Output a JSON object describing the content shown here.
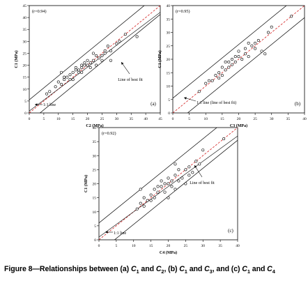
{
  "caption": {
    "prefix": "Figure 8—Relationships between (a) ",
    "v1": "C",
    "s1": "1",
    "and1": " and ",
    "v2": "C",
    "s2": "2",
    "sep1": ", (b) ",
    "v3": "C",
    "s3": "1",
    "and2": " and ",
    "v4": "C",
    "s4": "3",
    "sep2": ", and (c) ",
    "v5": "C",
    "s5": "1",
    "and3": " and ",
    "v6": "C",
    "s6": "4"
  },
  "chart_data": [
    {
      "type": "scatter",
      "panel_label": "(a)",
      "r_label": "(r=0.94)",
      "xlabel": "C2 (MPa)",
      "ylabel": "C1 (MPa)",
      "xlim": [
        0,
        45
      ],
      "ylim": [
        0,
        45
      ],
      "xticks": [
        0,
        5,
        10,
        15,
        20,
        25,
        30,
        35,
        40,
        45
      ],
      "yticks": [
        0,
        5,
        10,
        15,
        20,
        25,
        30,
        35,
        40,
        45
      ],
      "annotations": {
        "one_to_one": "1:1 line",
        "best_fit": "Line of best fit"
      },
      "one_to_one": {
        "slope": 1,
        "intercept": 0
      },
      "best_fit": {
        "slope": 0.92,
        "intercept": 0.8
      },
      "band": {
        "upper_intercept": 5.5,
        "lower_intercept": -3.7
      },
      "points": [
        [
          6,
          8
        ],
        [
          7,
          9
        ],
        [
          9,
          11
        ],
        [
          10,
          13
        ],
        [
          11,
          12
        ],
        [
          11,
          17
        ],
        [
          12,
          14
        ],
        [
          12,
          15
        ],
        [
          13,
          15
        ],
        [
          14,
          14
        ],
        [
          14,
          16
        ],
        [
          15,
          14
        ],
        [
          15,
          17
        ],
        [
          16,
          18
        ],
        [
          16,
          19
        ],
        [
          17,
          17
        ],
        [
          17,
          18
        ],
        [
          18,
          17
        ],
        [
          18,
          19
        ],
        [
          18,
          20
        ],
        [
          19,
          20
        ],
        [
          19,
          21
        ],
        [
          20,
          20
        ],
        [
          20,
          22
        ],
        [
          21,
          19
        ],
        [
          21,
          21
        ],
        [
          22,
          22
        ],
        [
          22,
          25
        ],
        [
          23,
          20
        ],
        [
          23,
          24
        ],
        [
          24,
          23
        ],
        [
          25,
          22
        ],
        [
          25,
          24
        ],
        [
          26,
          26
        ],
        [
          26,
          25
        ],
        [
          27,
          28
        ],
        [
          28,
          26
        ],
        [
          28,
          22
        ],
        [
          30,
          29
        ],
        [
          31,
          30
        ],
        [
          33,
          33
        ],
        [
          37,
          32
        ]
      ]
    },
    {
      "type": "scatter",
      "panel_label": "(b)",
      "r_label": "(r=0.95)",
      "xlabel": "C3 (MPa)",
      "ylabel": "C1 (MPa)",
      "xlim": [
        0,
        40
      ],
      "ylim": [
        0,
        40
      ],
      "xticks": [
        0,
        5,
        10,
        15,
        20,
        25,
        30,
        35,
        40
      ],
      "yticks": [
        0,
        5,
        10,
        15,
        20,
        25,
        30,
        35,
        40
      ],
      "annotations": {
        "one_to_one": "1:1 line (line of best fit)",
        "best_fit": ""
      },
      "one_to_one": {
        "slope": 1,
        "intercept": 0
      },
      "best_fit": null,
      "band": {
        "upper_intercept": 5.5,
        "lower_intercept": -4.5
      },
      "points": [
        [
          8,
          8
        ],
        [
          10,
          11
        ],
        [
          11,
          12
        ],
        [
          12,
          12
        ],
        [
          13,
          14
        ],
        [
          14,
          13
        ],
        [
          14,
          15
        ],
        [
          15,
          14
        ],
        [
          15,
          17
        ],
        [
          16,
          16
        ],
        [
          16,
          19
        ],
        [
          17,
          17
        ],
        [
          17,
          19
        ],
        [
          18,
          18
        ],
        [
          18,
          20
        ],
        [
          19,
          19
        ],
        [
          19,
          21
        ],
        [
          20,
          21
        ],
        [
          20,
          23
        ],
        [
          21,
          20
        ],
        [
          22,
          22
        ],
        [
          22,
          24
        ],
        [
          23,
          26
        ],
        [
          23,
          21
        ],
        [
          24,
          25
        ],
        [
          25,
          24
        ],
        [
          25,
          26
        ],
        [
          26,
          27
        ],
        [
          27,
          23
        ],
        [
          28,
          22
        ],
        [
          29,
          30
        ],
        [
          30,
          32
        ],
        [
          36,
          36
        ]
      ]
    },
    {
      "type": "scatter",
      "panel_label": "(c)",
      "r_label": "(r=0.92)",
      "xlabel": "C4 (MPa)",
      "ylabel": "C1 (MPa)",
      "xlim": [
        0,
        40
      ],
      "ylim": [
        0,
        40
      ],
      "xticks": [
        0,
        5,
        10,
        15,
        20,
        25,
        30,
        35,
        40
      ],
      "yticks": [
        0,
        5,
        10,
        15,
        20,
        25,
        30,
        35,
        40
      ],
      "annotations": {
        "one_to_one": "1:1 line",
        "best_fit": "Line of best fit"
      },
      "one_to_one": {
        "slope": 1,
        "intercept": 0
      },
      "best_fit": {
        "slope": 0.9,
        "intercept": 1.0
      },
      "band": {
        "upper_intercept": 6.0,
        "lower_intercept": -4.5
      },
      "points": [
        [
          11,
          11
        ],
        [
          12,
          13
        ],
        [
          12,
          18
        ],
        [
          13,
          12
        ],
        [
          13,
          15
        ],
        [
          14,
          14
        ],
        [
          15,
          14
        ],
        [
          15,
          16
        ],
        [
          16,
          15
        ],
        [
          16,
          18
        ],
        [
          17,
          17
        ],
        [
          17,
          19
        ],
        [
          18,
          19
        ],
        [
          18,
          21
        ],
        [
          19,
          20
        ],
        [
          19,
          17
        ],
        [
          20,
          20
        ],
        [
          20,
          22
        ],
        [
          20,
          15
        ],
        [
          21,
          19
        ],
        [
          21,
          21
        ],
        [
          22,
          23
        ],
        [
          22,
          18
        ],
        [
          22,
          27
        ],
        [
          23,
          21
        ],
        [
          23,
          25
        ],
        [
          24,
          22
        ],
        [
          25,
          25
        ],
        [
          25,
          20
        ],
        [
          26,
          26
        ],
        [
          26,
          23
        ],
        [
          27,
          24
        ],
        [
          28,
          28
        ],
        [
          29,
          27
        ],
        [
          30,
          32
        ],
        [
          36,
          36
        ]
      ]
    }
  ]
}
